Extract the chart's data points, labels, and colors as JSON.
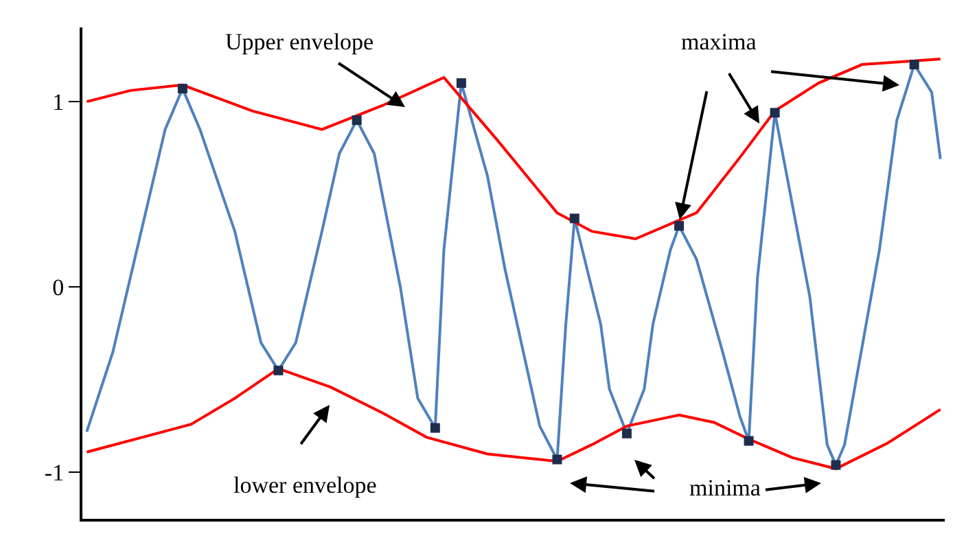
{
  "chart_data": {
    "type": "line",
    "categories": [
      null,
      null,
      null,
      null,
      null,
      null,
      null,
      null,
      null,
      null,
      null,
      null,
      null,
      null,
      null,
      null,
      null,
      null,
      null,
      null,
      null,
      null,
      null,
      null,
      null,
      null,
      null,
      null,
      null,
      null,
      null,
      null,
      null,
      null,
      null,
      null,
      null,
      null,
      null,
      null,
      null,
      null,
      null,
      null,
      null,
      null,
      null,
      null,
      null,
      null,
      null,
      null,
      null,
      null,
      null,
      null,
      null,
      null,
      null,
      null,
      null,
      null,
      null,
      null,
      null,
      null,
      null,
      null,
      null,
      null,
      null,
      null,
      null,
      null,
      null,
      null,
      null,
      null,
      null,
      null,
      null,
      null,
      null,
      null,
      null,
      null,
      null,
      null,
      null,
      null,
      null,
      null,
      null,
      null,
      null,
      null,
      null,
      null,
      null
    ],
    "ylim": [
      -1.25,
      1.4
    ],
    "yticks": [
      -1,
      0,
      1
    ],
    "tick_labels": "y",
    "legend": false,
    "series": [
      {
        "color": "#4f81bd",
        "values": [
          -0.78,
          null,
          null,
          -0.35,
          null,
          null,
          0.25,
          null,
          null,
          0.85,
          null,
          1.07,
          null,
          0.85,
          null,
          null,
          null,
          0.3,
          null,
          null,
          -0.3,
          null,
          -0.45,
          null,
          -0.3,
          null,
          null,
          0.3,
          null,
          0.72,
          null,
          0.9,
          null,
          0.72,
          null,
          null,
          0.0,
          null,
          -0.6,
          null,
          -0.76,
          0.2,
          null,
          1.1,
          null,
          null,
          0.6,
          null,
          0.1,
          null,
          null,
          null,
          -0.75,
          null,
          -0.93,
          -0.2,
          0.37,
          null,
          null,
          -0.2,
          -0.55,
          null,
          -0.79,
          null,
          -0.55,
          -0.2,
          null,
          0.2,
          0.33,
          null,
          0.15,
          null,
          null,
          -0.35,
          null,
          -0.7,
          -0.83,
          0.05,
          null,
          0.94,
          null,
          null,
          null,
          -0.05,
          null,
          -0.85,
          -0.96,
          -0.85,
          null,
          null,
          null,
          0.2,
          null,
          0.9,
          null,
          1.2,
          null,
          1.05,
          0.69
        ]
      },
      {
        "color": "#ff0000",
        "values": [
          1.0,
          null,
          null,
          null,
          null,
          1.06,
          null,
          null,
          null,
          null,
          null,
          1.09,
          null,
          null,
          null,
          null,
          null,
          null,
          null,
          0.95,
          null,
          null,
          null,
          null,
          null,
          null,
          null,
          0.85,
          null,
          null,
          null,
          null,
          null,
          null,
          0.98,
          null,
          null,
          null,
          null,
          null,
          null,
          1.13,
          null,
          null,
          null,
          null,
          null,
          0.8,
          null,
          null,
          null,
          null,
          null,
          null,
          0.4,
          null,
          null,
          null,
          0.3,
          null,
          null,
          null,
          null,
          0.26,
          null,
          null,
          null,
          null,
          null,
          null,
          0.4,
          null,
          null,
          null,
          null,
          0.7,
          null,
          null,
          null,
          0.95,
          null,
          null,
          null,
          null,
          1.1,
          null,
          null,
          null,
          null,
          1.2,
          null,
          null,
          null,
          null,
          null,
          null,
          null,
          null,
          1.23
        ]
      },
      {
        "color": "#ff0000",
        "values": [
          -0.89,
          null,
          null,
          null,
          null,
          null,
          null,
          null,
          null,
          null,
          null,
          null,
          -0.74,
          null,
          null,
          null,
          null,
          -0.6,
          null,
          null,
          null,
          null,
          -0.44,
          null,
          null,
          null,
          null,
          null,
          -0.54,
          null,
          null,
          null,
          null,
          null,
          -0.68,
          null,
          null,
          null,
          null,
          -0.81,
          null,
          null,
          null,
          null,
          null,
          null,
          -0.9,
          null,
          null,
          null,
          null,
          null,
          null,
          null,
          -0.94,
          null,
          null,
          null,
          -0.85,
          null,
          null,
          null,
          -0.75,
          null,
          null,
          null,
          null,
          null,
          -0.69,
          null,
          null,
          null,
          -0.73,
          null,
          null,
          null,
          -0.82,
          null,
          null,
          null,
          null,
          -0.92,
          null,
          null,
          null,
          null,
          -0.98,
          null,
          null,
          null,
          null,
          null,
          -0.84,
          null,
          null,
          null,
          null,
          null,
          -0.66
        ]
      },
      {
        "type": "scatter",
        "color": "#1f2d4d",
        "marker": "square",
        "values": [
          null,
          null,
          null,
          null,
          null,
          null,
          null,
          null,
          null,
          null,
          null,
          1.07,
          null,
          null,
          null,
          null,
          null,
          null,
          null,
          null,
          null,
          null,
          -0.45,
          null,
          null,
          null,
          null,
          null,
          null,
          null,
          null,
          0.9,
          null,
          null,
          null,
          null,
          null,
          null,
          null,
          null,
          -0.76,
          null,
          null,
          1.1,
          null,
          null,
          null,
          null,
          null,
          null,
          null,
          null,
          null,
          null,
          -0.93,
          null,
          0.37,
          null,
          null,
          null,
          null,
          null,
          -0.79,
          null,
          null,
          null,
          null,
          null,
          0.33,
          null,
          null,
          null,
          null,
          null,
          null,
          null,
          -0.83,
          null,
          null,
          0.94,
          null,
          null,
          null,
          null,
          null,
          null,
          -0.96,
          null,
          null,
          null,
          null,
          null,
          null,
          null,
          null,
          1.2,
          null,
          null,
          null
        ]
      }
    ],
    "annotations": [
      "Upper envelope",
      "maxima",
      "lower envelope",
      "minima"
    ]
  }
}
